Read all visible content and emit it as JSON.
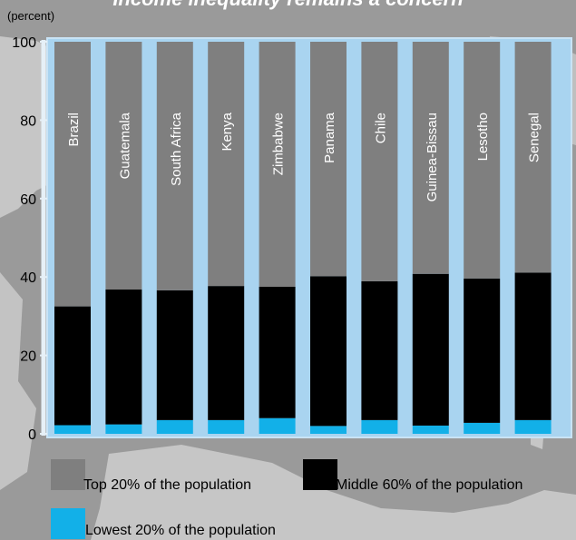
{
  "chart_data": {
    "type": "bar",
    "stacked": true,
    "title": "Income inequality remains a concern",
    "unit_label": "(percent)",
    "categories": [
      "Brazil",
      "Guatemala",
      "South Africa",
      "Kenya",
      "Zimbabwe",
      "Panama",
      "Chile",
      "Guinea-Bissau",
      "Lesotho",
      "Senegal"
    ],
    "series": [
      {
        "name": "Lowest 20% of the population",
        "color": "#12b0e8",
        "values": [
          2.2,
          2.4,
          3.5,
          3.5,
          4.0,
          2.0,
          3.5,
          2.1,
          2.8,
          3.5
        ]
      },
      {
        "name": "Middle 60% of the population",
        "color": "#000000",
        "values": [
          30.3,
          34.4,
          33.1,
          34.2,
          33.5,
          38.2,
          35.4,
          38.7,
          36.8,
          37.6
        ]
      },
      {
        "name": "Top 20% of the population",
        "color": "#7f7f7f",
        "values": [
          67.5,
          63.2,
          63.4,
          62.3,
          62.5,
          59.8,
          61.1,
          59.2,
          60.4,
          58.9
        ]
      }
    ],
    "yticks": [
      0,
      20,
      40,
      60,
      80,
      100
    ],
    "ylim": [
      0,
      100
    ],
    "legend_position": "bottom"
  }
}
